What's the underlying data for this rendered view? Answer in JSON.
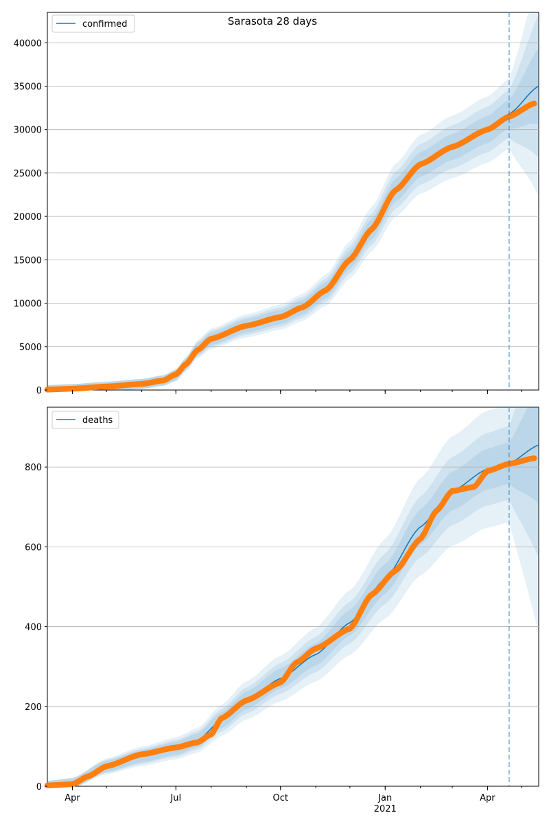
{
  "figure": {
    "title": "Sarasota 28 days"
  },
  "colors": {
    "model_line": "#1f77b4",
    "band": "#1f77b4",
    "observed": "#ff7f0e",
    "grid": "#b0b0b0",
    "forecast_line": "#1f77b4"
  },
  "chart_data": [
    {
      "type": "line",
      "panel": "top",
      "title": "Sarasota 28 days",
      "legend": {
        "label": "confirmed",
        "placement": "top-left"
      },
      "xlim": [
        "2020-03-10",
        "2021-05-16"
      ],
      "ylim": [
        0,
        43500
      ],
      "forecast_date": "2021-04-20",
      "grid": {
        "y": true,
        "x": false
      },
      "y_ticks": [
        0,
        5000,
        10000,
        15000,
        20000,
        25000,
        30000,
        35000,
        40000
      ],
      "y_tick_labels": [
        "0",
        "5000",
        "10000",
        "15000",
        "20000",
        "25000",
        "30000",
        "35000",
        "40000"
      ],
      "x_ticks": [
        "2020-04-01",
        "2020-07-01",
        "2020-10-01",
        "2021-01-01",
        "2021-04-01"
      ],
      "x_tick_labels": [
        "Apr",
        "Jul",
        "Oct",
        "Jan",
        "Apr"
      ],
      "x_tick_sublabels": [
        "",
        "",
        "",
        "2021",
        ""
      ],
      "model_knots": [
        [
          "2020-03-10",
          50
        ],
        [
          "2020-04-01",
          150
        ],
        [
          "2020-05-01",
          400
        ],
        [
          "2020-06-01",
          700
        ],
        [
          "2020-06-20",
          1100
        ],
        [
          "2020-07-01",
          1700
        ],
        [
          "2020-07-10",
          3000
        ],
        [
          "2020-07-20",
          4700
        ],
        [
          "2020-08-01",
          5900
        ],
        [
          "2020-09-01",
          7400
        ],
        [
          "2020-10-01",
          8400
        ],
        [
          "2020-10-20",
          9500
        ],
        [
          "2020-11-10",
          11500
        ],
        [
          "2020-12-01",
          15000
        ],
        [
          "2020-12-20",
          18500
        ],
        [
          "2021-01-10",
          23000
        ],
        [
          "2021-02-01",
          26000
        ],
        [
          "2021-03-01",
          28000
        ],
        [
          "2021-04-01",
          30000
        ],
        [
          "2021-04-20",
          31800
        ],
        [
          "2021-05-16",
          35000
        ]
      ],
      "observed_knots": [
        [
          "2020-03-10",
          50
        ],
        [
          "2020-04-01",
          150
        ],
        [
          "2020-05-01",
          400
        ],
        [
          "2020-06-01",
          700
        ],
        [
          "2020-06-20",
          1100
        ],
        [
          "2020-07-01",
          1800
        ],
        [
          "2020-07-10",
          3000
        ],
        [
          "2020-07-20",
          4600
        ],
        [
          "2020-08-01",
          5900
        ],
        [
          "2020-09-01",
          7400
        ],
        [
          "2020-10-01",
          8400
        ],
        [
          "2020-10-20",
          9500
        ],
        [
          "2020-11-10",
          11500
        ],
        [
          "2020-12-01",
          15000
        ],
        [
          "2020-12-20",
          18500
        ],
        [
          "2021-01-10",
          23000
        ],
        [
          "2021-02-01",
          26000
        ],
        [
          "2021-03-01",
          28000
        ],
        [
          "2021-04-01",
          30000
        ],
        [
          "2021-04-20",
          31500
        ],
        [
          "2021-05-12",
          33000
        ]
      ],
      "observed_end": "2021-05-12",
      "band_fraction_widths": [
        0.035,
        0.07,
        0.11
      ]
    },
    {
      "type": "line",
      "panel": "bottom",
      "legend": {
        "label": "deaths",
        "placement": "top-left"
      },
      "xlim": [
        "2020-03-10",
        "2021-05-16"
      ],
      "ylim": [
        0,
        950
      ],
      "forecast_date": "2021-04-20",
      "grid": {
        "y": true,
        "x": false
      },
      "y_ticks": [
        0,
        200,
        400,
        600,
        800
      ],
      "y_tick_labels": [
        "0",
        "200",
        "400",
        "600",
        "800"
      ],
      "x_ticks": [
        "2020-04-01",
        "2020-07-01",
        "2020-10-01",
        "2021-01-01",
        "2021-04-01"
      ],
      "x_tick_labels": [
        "Apr",
        "Jul",
        "Oct",
        "Jan",
        "Apr"
      ],
      "x_tick_sublabels": [
        "",
        "",
        "",
        "2021",
        ""
      ],
      "model_knots": [
        [
          "2020-03-10",
          2
        ],
        [
          "2020-04-01",
          8
        ],
        [
          "2020-05-01",
          50
        ],
        [
          "2020-06-01",
          75
        ],
        [
          "2020-07-01",
          95
        ],
        [
          "2020-07-20",
          115
        ],
        [
          "2020-08-10",
          165
        ],
        [
          "2020-09-01",
          215
        ],
        [
          "2020-10-01",
          270
        ],
        [
          "2020-11-01",
          330
        ],
        [
          "2020-12-01",
          410
        ],
        [
          "2021-01-01",
          520
        ],
        [
          "2021-02-01",
          650
        ],
        [
          "2021-03-01",
          740
        ],
        [
          "2021-04-01",
          795
        ],
        [
          "2021-04-20",
          810
        ],
        [
          "2021-05-16",
          855
        ]
      ],
      "observed_knots": [
        [
          "2020-03-10",
          2
        ],
        [
          "2020-04-01",
          5
        ],
        [
          "2020-04-15",
          25
        ],
        [
          "2020-05-01",
          50
        ],
        [
          "2020-06-01",
          80
        ],
        [
          "2020-07-01",
          97
        ],
        [
          "2020-07-20",
          110
        ],
        [
          "2020-08-01",
          130
        ],
        [
          "2020-08-10",
          170
        ],
        [
          "2020-09-01",
          215
        ],
        [
          "2020-10-01",
          260
        ],
        [
          "2020-10-15",
          310
        ],
        [
          "2020-11-01",
          345
        ],
        [
          "2020-12-01",
          395
        ],
        [
          "2020-12-20",
          480
        ],
        [
          "2021-01-10",
          540
        ],
        [
          "2021-02-01",
          620
        ],
        [
          "2021-02-15",
          690
        ],
        [
          "2021-03-01",
          740
        ],
        [
          "2021-03-20",
          750
        ],
        [
          "2021-04-01",
          790
        ],
        [
          "2021-04-20",
          808
        ],
        [
          "2021-05-12",
          822
        ]
      ],
      "observed_end": "2021-05-12",
      "band_fraction_widths": [
        0.05,
        0.1,
        0.17
      ]
    }
  ]
}
